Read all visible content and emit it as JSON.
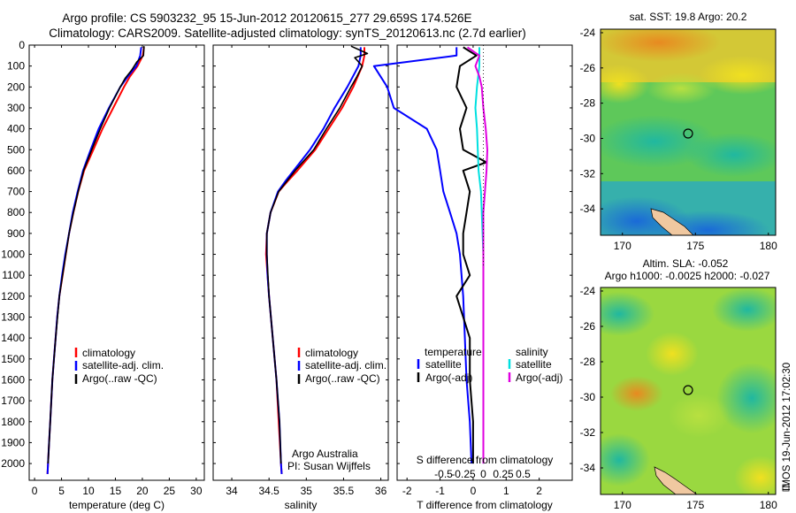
{
  "header": {
    "line1": "Argo profile: CS 5903232_95 15-Jun-2012 20120615_277 29.659S 174.526E",
    "line2": "Climatology: CARS2009. Satellite-adjusted climatology: synTS_20120613.nc (2.7d earlier)"
  },
  "colors": {
    "climatology": "#ff0000",
    "satellite": "#0000ff",
    "argo": "#000000",
    "satellite_diff_s": "#00e0e0",
    "argo_diff_s": "#e000e0"
  },
  "legend_profile": [
    "climatology",
    "satellite-adj. clim.",
    "Argo(..raw -QC)"
  ],
  "diff_legend": {
    "temp_head": "temperature",
    "sal_head": "salinity",
    "satellite": "satellite",
    "argo": "Argo(-adj)"
  },
  "credit": {
    "line1": "Argo Australia",
    "line2": "PI: Susan Wijffels"
  },
  "stamp": "IMOS 19-Jun-2012 17:02:30",
  "chart_data": [
    {
      "type": "line",
      "id": "temperature",
      "xlabel": "temperature (deg C)",
      "ylabel": "",
      "xlim": [
        -1,
        31.5
      ],
      "ylim": [
        2080,
        0
      ],
      "y_reversed": true,
      "x_ticks": [
        0,
        5,
        10,
        15,
        20,
        25,
        30
      ],
      "y_ticks": [
        0,
        100,
        200,
        300,
        400,
        500,
        600,
        700,
        800,
        900,
        1000,
        1100,
        1200,
        1300,
        1400,
        1500,
        1600,
        1700,
        1800,
        1900,
        2000
      ],
      "series": [
        {
          "name": "climatology",
          "depth": [
            10,
            50,
            100,
            150,
            200,
            300,
            400,
            500,
            600,
            700,
            800,
            900,
            1000,
            1100,
            1200,
            1300,
            1400,
            1500,
            1600,
            1700,
            1800,
            1900,
            2000,
            2050
          ],
          "values": [
            20.3,
            20.1,
            19.1,
            17.7,
            16.6,
            14.6,
            12.6,
            10.9,
            9.2,
            8.1,
            7.2,
            6.4,
            5.8,
            5.2,
            4.6,
            4.2,
            3.9,
            3.6,
            3.3,
            3.1,
            2.9,
            2.7,
            2.5,
            2.4
          ]
        },
        {
          "name": "satellite-adj. clim.",
          "depth": [
            10,
            50,
            100,
            150,
            200,
            300,
            400,
            500,
            600,
            700,
            800,
            900,
            1000,
            1100,
            1200,
            1300,
            1400,
            1500,
            1600,
            1700,
            1800,
            1900,
            2000,
            2050
          ],
          "values": [
            19.8,
            19.6,
            18.9,
            17.3,
            15.9,
            13.8,
            11.9,
            10.4,
            9.0,
            8.0,
            7.1,
            6.4,
            5.7,
            5.1,
            4.6,
            4.2,
            3.9,
            3.6,
            3.3,
            3.1,
            2.9,
            2.7,
            2.5,
            2.4
          ]
        },
        {
          "name": "Argo(..raw -QC)",
          "depth": [
            5,
            50,
            80,
            120,
            160,
            200,
            300,
            400,
            500,
            600,
            700,
            800,
            900,
            1000,
            1200,
            1400,
            1600,
            1800,
            2000
          ],
          "values": [
            20.3,
            20.2,
            19.0,
            18.0,
            16.8,
            15.9,
            13.9,
            12.2,
            10.6,
            9.1,
            8.1,
            7.2,
            6.4,
            5.8,
            4.6,
            3.9,
            3.3,
            2.9,
            2.5
          ]
        }
      ]
    },
    {
      "type": "line",
      "id": "salinity",
      "xlabel": "salinity",
      "ylabel": "",
      "xlim": [
        33.75,
        36.1
      ],
      "ylim": [
        2080,
        0
      ],
      "y_reversed": true,
      "x_ticks": [
        34,
        34.5,
        35,
        35.5,
        36
      ],
      "series": [
        {
          "name": "climatology",
          "depth": [
            10,
            50,
            100,
            200,
            300,
            400,
            500,
            600,
            650,
            700,
            800,
            900,
            1000,
            1100,
            1200,
            1400,
            1600,
            1800,
            2000,
            2050
          ],
          "values": [
            35.78,
            35.78,
            35.75,
            35.63,
            35.48,
            35.3,
            35.12,
            34.88,
            34.75,
            34.63,
            34.52,
            34.47,
            34.46,
            34.48,
            34.5,
            34.55,
            34.6,
            34.63,
            34.66,
            34.67
          ]
        },
        {
          "name": "satellite-adj. clim.",
          "depth": [
            10,
            50,
            100,
            200,
            300,
            400,
            500,
            600,
            650,
            700,
            800,
            900,
            1000,
            1100,
            1200,
            1400,
            1600,
            1800,
            2000,
            2050
          ],
          "values": [
            35.73,
            35.73,
            35.7,
            35.55,
            35.38,
            35.23,
            35.05,
            34.83,
            34.72,
            34.62,
            34.52,
            34.47,
            34.47,
            34.48,
            34.5,
            34.55,
            34.6,
            34.64,
            34.66,
            34.67
          ]
        },
        {
          "name": "Argo(..raw -QC)",
          "depth": [
            5,
            40,
            60,
            80,
            100,
            150,
            200,
            300,
            400,
            500,
            600,
            700,
            800,
            900,
            1000,
            1200,
            1400,
            1600,
            1800,
            2000
          ],
          "values": [
            35.6,
            35.82,
            35.65,
            35.7,
            35.75,
            35.68,
            35.6,
            35.45,
            35.27,
            35.1,
            34.85,
            34.63,
            34.52,
            34.47,
            34.47,
            34.5,
            34.55,
            34.6,
            34.64,
            34.66
          ]
        }
      ]
    },
    {
      "type": "line",
      "id": "difference",
      "title": "S difference from climatology",
      "xlabel": "T difference from climatology",
      "xlim": [
        -2.3,
        3.0
      ],
      "ylim": [
        2080,
        0
      ],
      "y_reversed": true,
      "x_ticks": [
        -2,
        -1,
        0,
        1,
        2
      ],
      "s_ticks": [
        -0.5,
        -0.25,
        0,
        0.25,
        0.5
      ],
      "s_tick_labels": [
        "-0.5",
        "-0.25",
        "0",
        "0.25",
        "0.5"
      ],
      "series": [
        {
          "name": "temperature satellite",
          "depth": [
            10,
            50,
            100,
            200,
            300,
            400,
            500,
            600,
            700,
            800,
            900,
            1000,
            1200,
            1400,
            1600,
            1800,
            2000
          ],
          "values": [
            -0.5,
            -0.5,
            -3.0,
            -2.6,
            -2.4,
            -1.4,
            -1.1,
            -1.0,
            -0.9,
            -0.7,
            -0.5,
            -0.4,
            -0.3,
            -0.25,
            -0.2,
            -0.1,
            -0.05
          ]
        },
        {
          "name": "temperature Argo(-adj)",
          "depth": [
            10,
            50,
            100,
            200,
            300,
            400,
            500,
            560,
            600,
            700,
            800,
            900,
            1000,
            1100,
            1200,
            1300,
            1400,
            1600,
            1800,
            2000
          ],
          "values": [
            -0.3,
            0.1,
            -0.4,
            -0.5,
            -0.2,
            -0.4,
            -0.3,
            0.4,
            -0.3,
            -0.1,
            -0.2,
            -0.3,
            -0.3,
            -0.1,
            -0.5,
            -0.3,
            -0.1,
            -0.1,
            0,
            0
          ]
        },
        {
          "name": "salinity satellite",
          "depth": [
            10,
            50,
            100,
            200,
            300,
            400,
            500,
            600,
            700,
            800,
            900,
            1000,
            1200,
            1400,
            1600,
            1800,
            2000
          ],
          "values": [
            -0.05,
            -0.05,
            -0.05,
            -0.08,
            -0.1,
            -0.08,
            -0.07,
            -0.06,
            -0.03,
            -0.02,
            -0.01,
            0,
            0,
            0,
            0,
            0,
            0
          ]
        },
        {
          "name": "salinity Argo(-adj)",
          "depth": [
            10,
            50,
            100,
            150,
            200,
            300,
            400,
            500,
            600,
            700,
            800,
            900,
            1000,
            1200,
            1400,
            1600,
            1800,
            2000
          ],
          "values": [
            -0.2,
            -0.05,
            -0.1,
            -0.05,
            -0.02,
            0,
            0.03,
            0.05,
            0.04,
            0.02,
            0,
            0,
            0,
            0,
            0,
            0,
            0,
            0
          ]
        }
      ]
    },
    {
      "type": "heatmap",
      "id": "sst_map",
      "title": "sat. SST: 19.8 Argo: 20.2",
      "xlim": [
        168.5,
        180.5
      ],
      "ylim": [
        -35.5,
        -23.8
      ],
      "x_ticks": [
        170,
        175,
        180
      ],
      "y_ticks": [
        -24,
        -26,
        -28,
        -30,
        -32,
        -34
      ],
      "argo_position": [
        174.526,
        -29.659
      ]
    },
    {
      "type": "heatmap",
      "id": "sla_map",
      "title": "Altim. SLA: -0.052",
      "subtitle": "Argo h1000: -0.0025 h2000: -0.027",
      "xlim": [
        168.5,
        180.5
      ],
      "ylim": [
        -35.5,
        -23.8
      ],
      "x_ticks": [
        170,
        175,
        180
      ],
      "y_ticks": [
        -24,
        -26,
        -28,
        -30,
        -32,
        -34
      ],
      "argo_position": [
        174.526,
        -29.659
      ]
    }
  ]
}
